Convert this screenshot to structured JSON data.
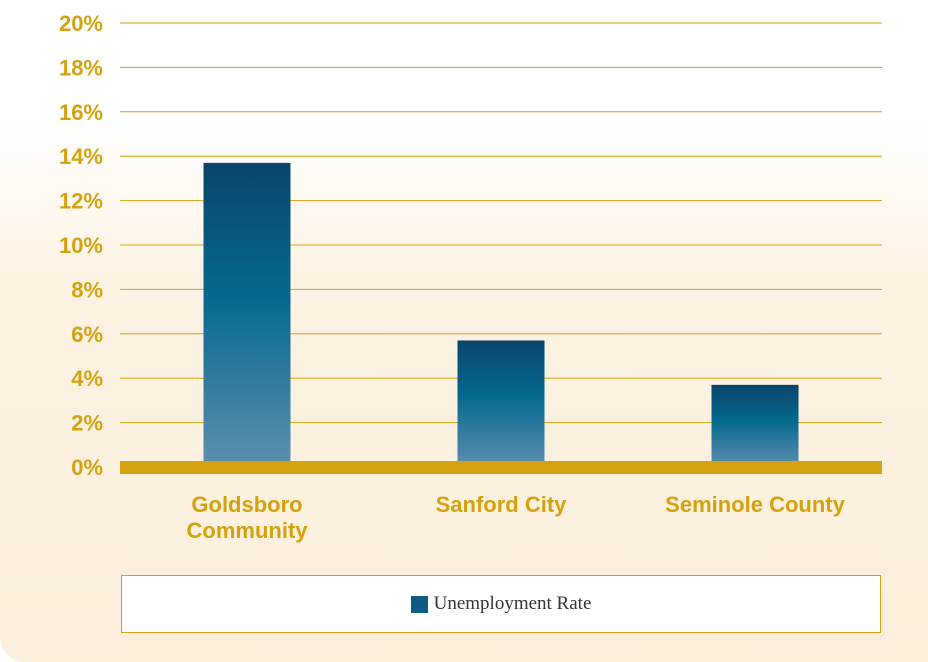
{
  "chart_data": {
    "type": "bar",
    "categories": [
      "Goldsboro Community",
      "Sanford City",
      "Seminole County"
    ],
    "category_lines": [
      [
        "Goldsboro",
        "Community"
      ],
      [
        "Sanford City"
      ],
      [
        "Seminole County"
      ]
    ],
    "series": [
      {
        "name": "Unemployment Rate",
        "values": [
          13.7,
          5.7,
          3.7
        ]
      }
    ],
    "yticks": [
      "0%",
      "2%",
      "4%",
      "6%",
      "8%",
      "10%",
      "12%",
      "14%",
      "16%",
      "18%",
      "20%"
    ],
    "ylim": [
      0,
      20
    ],
    "ytick_step": 2,
    "grid": true,
    "legend_position": "bottom",
    "title": "",
    "xlabel": "",
    "ylabel": ""
  },
  "colors": {
    "accent": "#d4a20e",
    "bar_top": "#08456b",
    "bar_mid": "#07698f",
    "bar_bottom": "#5e8fae",
    "legend_swatch": "#0e5b86"
  }
}
